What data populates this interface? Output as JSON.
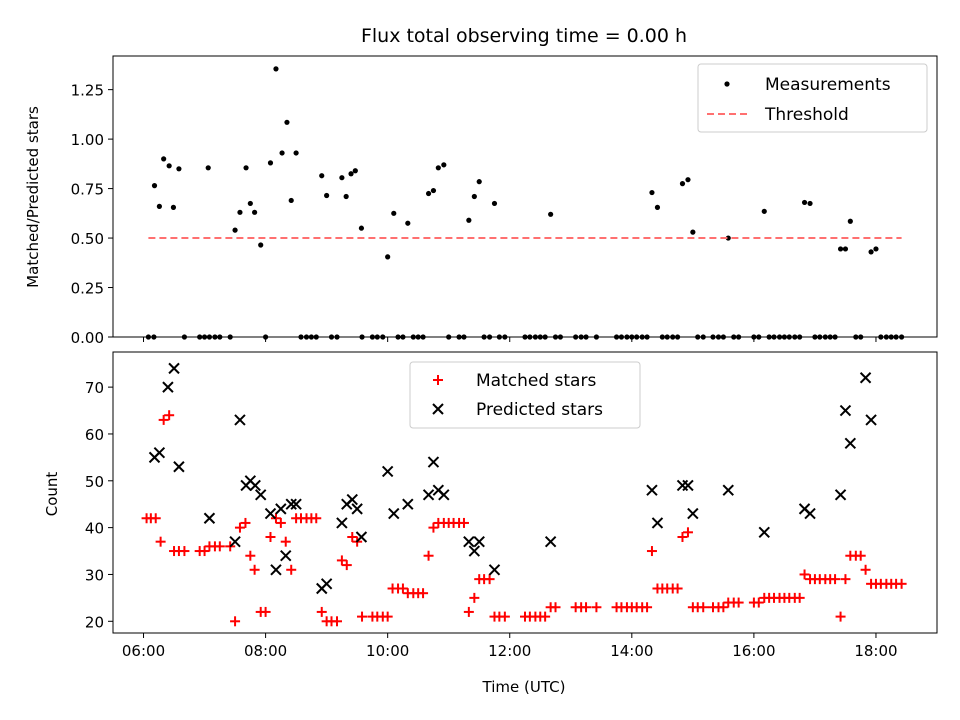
{
  "chart_data": [
    {
      "type": "scatter",
      "title": "Flux total observing time = 0.00 h",
      "xlabel": "",
      "ylabel": "Matched/Predicted stars",
      "xlim": [
        5.5,
        19.0
      ],
      "ylim": [
        0,
        1.42
      ],
      "yticks": [
        0,
        0.25,
        0.5,
        0.75,
        1.0,
        1.25
      ],
      "ytick_labels": [
        "0.00",
        "0.25",
        "0.50",
        "0.75",
        "1.00",
        "1.25"
      ],
      "xticks": [
        6,
        8,
        10,
        12,
        14,
        16,
        18
      ],
      "legend_position": "top-right",
      "series": [
        {
          "name": "Measurements",
          "kind": "points",
          "color": "#000000",
          "x": [
            6.18,
            6.26,
            6.33,
            6.42,
            6.49,
            6.58,
            7.06,
            7.5,
            7.58,
            7.68,
            7.75,
            7.82,
            7.92,
            8.08,
            8.17,
            8.27,
            8.35,
            8.42,
            8.5,
            8.92,
            9.0,
            9.25,
            9.32,
            9.4,
            9.47,
            9.57,
            10.0,
            10.1,
            10.33,
            10.67,
            10.75,
            10.83,
            10.92,
            11.33,
            11.42,
            11.5,
            11.75,
            12.67,
            14.33,
            14.42,
            14.83,
            14.92,
            15.0,
            15.58,
            16.17,
            16.83,
            16.92,
            17.42,
            17.5,
            17.58,
            17.92,
            18.0
          ],
          "y": [
            0.765,
            0.66,
            0.9,
            0.865,
            0.655,
            0.85,
            0.855,
            0.54,
            0.63,
            0.855,
            0.675,
            0.63,
            0.465,
            0.88,
            1.355,
            0.93,
            1.085,
            0.69,
            0.93,
            0.815,
            0.715,
            0.805,
            0.71,
            0.825,
            0.84,
            0.55,
            0.405,
            0.625,
            0.575,
            0.725,
            0.74,
            0.855,
            0.87,
            0.59,
            0.71,
            0.785,
            0.675,
            0.62,
            0.73,
            0.655,
            0.775,
            0.795,
            0.53,
            0.5,
            0.635,
            0.68,
            0.675,
            0.445,
            0.445,
            0.585,
            0.43,
            0.445
          ]
        },
        {
          "name": "Measurements",
          "kind": "zero-points",
          "color": "#000000",
          "x": [
            6.08,
            6.17,
            6.67,
            6.92,
            7.0,
            7.08,
            7.17,
            7.25,
            7.42,
            8.0,
            8.58,
            8.67,
            8.75,
            8.83,
            9.08,
            9.17,
            9.58,
            9.75,
            9.83,
            9.92,
            10.17,
            10.25,
            10.42,
            10.5,
            10.58,
            11.0,
            11.17,
            11.25,
            11.58,
            11.67,
            11.83,
            11.92,
            12.25,
            12.33,
            12.42,
            12.5,
            12.58,
            12.75,
            12.83,
            13.08,
            13.17,
            13.25,
            13.42,
            13.75,
            13.83,
            13.92,
            14.0,
            14.08,
            14.17,
            14.25,
            14.5,
            14.58,
            14.67,
            14.75,
            15.08,
            15.17,
            15.33,
            15.42,
            15.5,
            15.67,
            15.75,
            16.0,
            16.08,
            16.25,
            16.33,
            16.42,
            16.5,
            16.58,
            16.67,
            16.75,
            17.0,
            17.08,
            17.17,
            17.25,
            17.33,
            17.67,
            17.75,
            18.08,
            18.17,
            18.25,
            18.33,
            18.42
          ],
          "y_value": 0
        },
        {
          "name": "Threshold",
          "kind": "dashed-line",
          "color": "#ff7070",
          "x": [
            6.08,
            18.42
          ],
          "y": [
            0.5,
            0.5
          ]
        }
      ]
    },
    {
      "type": "scatter",
      "title": "",
      "xlabel": "Time (UTC)",
      "ylabel": "Count",
      "xlim": [
        5.5,
        19.0
      ],
      "ylim": [
        17.5,
        77.5
      ],
      "yticks": [
        20,
        30,
        40,
        50,
        60,
        70
      ],
      "ytick_labels": [
        "20",
        "30",
        "40",
        "50",
        "60",
        "70"
      ],
      "xticks": [
        6,
        8,
        10,
        12,
        14,
        16,
        18
      ],
      "xtick_labels": [
        "06:00",
        "08:00",
        "10:00",
        "12:00",
        "14:00",
        "16:00",
        "18:00"
      ],
      "legend_position": "top-center",
      "series": [
        {
          "name": "Matched stars",
          "marker": "plus",
          "color": "#ff0000",
          "x": [
            6.05,
            6.12,
            6.2,
            6.28,
            6.33,
            6.42,
            6.5,
            6.58,
            6.67,
            6.92,
            7.0,
            7.08,
            7.17,
            7.25,
            7.42,
            7.5,
            7.58,
            7.67,
            7.75,
            7.82,
            7.92,
            8.0,
            8.08,
            8.17,
            8.25,
            8.33,
            8.42,
            8.5,
            8.58,
            8.67,
            8.75,
            8.83,
            8.92,
            9.0,
            9.08,
            9.17,
            9.25,
            9.33,
            9.42,
            9.5,
            9.58,
            9.75,
            9.83,
            9.92,
            10.0,
            10.08,
            10.17,
            10.25,
            10.33,
            10.42,
            10.5,
            10.58,
            10.67,
            10.75,
            10.83,
            10.92,
            11.0,
            11.08,
            11.17,
            11.25,
            11.33,
            11.42,
            11.5,
            11.58,
            11.67,
            11.75,
            11.83,
            11.92,
            12.25,
            12.33,
            12.42,
            12.5,
            12.58,
            12.67,
            12.75,
            13.08,
            13.17,
            13.25,
            13.42,
            13.75,
            13.83,
            13.92,
            14.0,
            14.08,
            14.17,
            14.25,
            14.33,
            14.42,
            14.5,
            14.58,
            14.67,
            14.75,
            14.83,
            14.92,
            15.0,
            15.08,
            15.17,
            15.33,
            15.42,
            15.5,
            15.58,
            15.67,
            15.75,
            16.0,
            16.08,
            16.17,
            16.25,
            16.33,
            16.42,
            16.5,
            16.58,
            16.67,
            16.75,
            16.83,
            16.92,
            17.0,
            17.08,
            17.17,
            17.25,
            17.33,
            17.42,
            17.5,
            17.58,
            17.67,
            17.75,
            17.83,
            17.92,
            18.0,
            18.08,
            18.17,
            18.25,
            18.33,
            18.42
          ],
          "y": [
            42,
            42,
            42,
            37,
            63,
            64,
            35,
            35,
            35,
            35,
            35,
            36,
            36,
            36,
            36,
            20,
            40,
            41,
            34,
            31,
            22,
            22,
            38,
            42,
            41,
            37,
            31,
            42,
            42,
            42,
            42,
            42,
            22,
            20,
            20,
            20,
            33,
            32,
            38,
            37,
            21,
            21,
            21,
            21,
            21,
            27,
            27,
            27,
            26,
            26,
            26,
            26,
            34,
            40,
            41,
            41,
            41,
            41,
            41,
            41,
            22,
            25,
            29,
            29,
            29,
            21,
            21,
            21,
            21,
            21,
            21,
            21,
            21,
            23,
            23,
            23,
            23,
            23,
            23,
            23,
            23,
            23,
            23,
            23,
            23,
            23,
            35,
            27,
            27,
            27,
            27,
            27,
            38,
            39,
            23,
            23,
            23,
            23,
            23,
            23,
            24,
            24,
            24,
            24,
            24,
            25,
            25,
            25,
            25,
            25,
            25,
            25,
            25,
            30,
            29,
            29,
            29,
            29,
            29,
            29,
            21,
            29,
            34,
            34,
            34,
            31,
            28,
            28,
            28,
            28,
            28,
            28,
            28
          ]
        },
        {
          "name": "Predicted stars",
          "marker": "x",
          "color": "#000000",
          "x": [
            6.18,
            6.26,
            6.4,
            6.5,
            6.58,
            7.08,
            7.5,
            7.58,
            7.68,
            7.75,
            7.83,
            7.92,
            8.08,
            8.17,
            8.25,
            8.33,
            8.42,
            8.5,
            8.92,
            9.0,
            9.25,
            9.33,
            9.42,
            9.5,
            9.57,
            10.0,
            10.1,
            10.33,
            10.67,
            10.75,
            10.83,
            10.92,
            11.33,
            11.42,
            11.5,
            11.75,
            12.67,
            14.33,
            14.42,
            14.83,
            14.92,
            15.0,
            15.58,
            16.17,
            16.83,
            16.92,
            17.42,
            17.5,
            17.58,
            17.83,
            17.92
          ],
          "y": [
            55,
            56,
            70,
            74,
            53,
            42,
            37,
            63,
            49,
            50,
            49,
            47,
            43,
            31,
            44,
            34,
            45,
            45,
            27,
            28,
            41,
            45,
            46,
            44,
            38,
            52,
            43,
            45,
            47,
            54,
            48,
            47,
            37,
            35,
            37,
            31,
            37,
            48,
            41,
            49,
            49,
            43,
            48,
            39,
            44,
            43,
            47,
            65,
            58,
            72,
            63
          ]
        }
      ]
    }
  ]
}
